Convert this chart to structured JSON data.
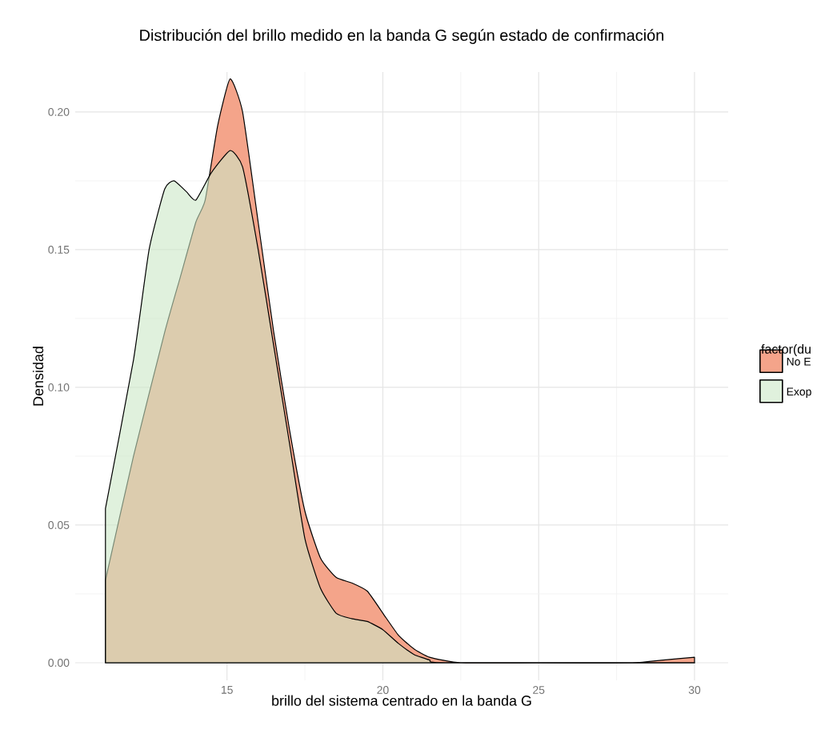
{
  "chart_data": {
    "type": "area",
    "title": "Distribución del brillo medido en la banda G según estado de confirmación",
    "xlabel": "brillo del sistema centrado en la banda G",
    "ylabel": "Densidad",
    "legend_title": "factor(du",
    "series": [
      {
        "name": "No E",
        "color": "#f4a48a",
        "x": [
          11.1,
          12,
          13,
          13.5,
          14,
          14.3,
          14.7,
          15.1,
          15.5,
          16,
          16.5,
          17,
          17.5,
          18,
          18.5,
          19,
          19.5,
          20,
          20.5,
          21,
          21.5,
          22.5,
          25,
          28,
          29,
          30
        ],
        "values": [
          0.03,
          0.075,
          0.12,
          0.14,
          0.16,
          0.168,
          0.195,
          0.212,
          0.2,
          0.16,
          0.12,
          0.085,
          0.055,
          0.038,
          0.031,
          0.029,
          0.026,
          0.018,
          0.01,
          0.005,
          0.002,
          0,
          0,
          0,
          0.001,
          0.002
        ]
      },
      {
        "name": "Exop",
        "color": "#cce8c6",
        "x": [
          11.1,
          12,
          12.5,
          13,
          13.3,
          13.7,
          14,
          14.5,
          15.1,
          15.5,
          16,
          16.5,
          17,
          17.5,
          18,
          18.5,
          19,
          19.5,
          20,
          20.5,
          21,
          21.5,
          22,
          30
        ],
        "values": [
          0.056,
          0.11,
          0.15,
          0.172,
          0.175,
          0.171,
          0.168,
          0.178,
          0.186,
          0.18,
          0.15,
          0.115,
          0.08,
          0.045,
          0.027,
          0.018,
          0.016,
          0.015,
          0.012,
          0.007,
          0.003,
          0.001,
          0,
          0
        ]
      }
    ],
    "xlim": [
      10.13,
      31.08
    ],
    "ylim": [
      -0.0064,
      0.2145
    ],
    "xticks": [
      15,
      20,
      25,
      30
    ],
    "yticks": [
      {
        "value": 0,
        "label": "0.00"
      },
      {
        "value": 0.05,
        "label": "0.05"
      },
      {
        "value": 0.1,
        "label": "0.10"
      },
      {
        "value": 0.15,
        "label": "0.15"
      },
      {
        "value": 0.2,
        "label": "0.20"
      }
    ],
    "grid": true,
    "legend": "right"
  }
}
